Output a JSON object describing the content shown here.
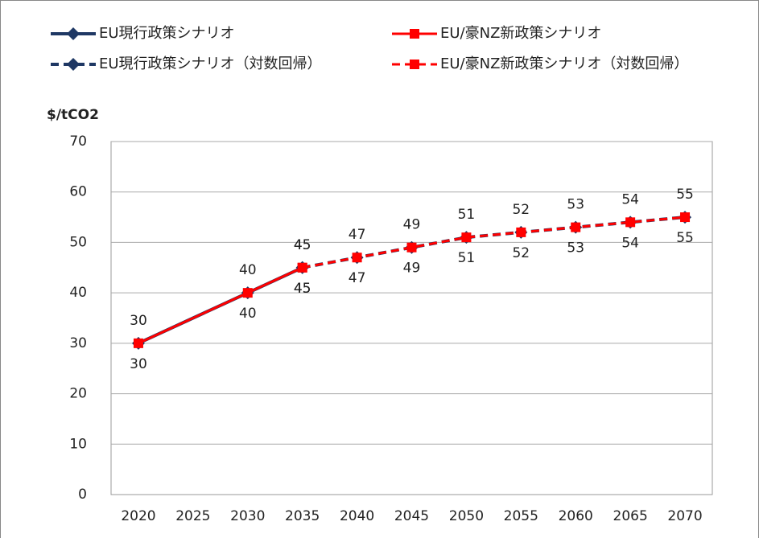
{
  "chart_data": {
    "type": "line",
    "y_label": "$/tCO2",
    "xticks": [
      2020,
      2025,
      2030,
      2035,
      2040,
      2045,
      2050,
      2055,
      2060,
      2065,
      2070
    ],
    "xlim": [
      2017.5,
      2072.5
    ],
    "ylim": [
      0,
      70
    ],
    "yticks": [
      0,
      10,
      20,
      30,
      40,
      50,
      60,
      70
    ],
    "grid": true,
    "series": [
      {
        "name": "EU現行政策シナリオ",
        "color": "#1f3864",
        "marker": "diamond",
        "dash": false,
        "label_side": "above",
        "x": [
          2020,
          2030,
          2035
        ],
        "values": [
          30,
          40,
          45
        ]
      },
      {
        "name": "EU/豪NZ新政策シナリオ",
        "color": "#ff0000",
        "marker": "square",
        "dash": false,
        "label_side": "below",
        "x": [
          2020,
          2030,
          2035
        ],
        "values": [
          30,
          40,
          45
        ]
      },
      {
        "name": "EU現行政策シナリオ（対数回帰）",
        "color": "#1f3864",
        "marker": "diamond",
        "dash": true,
        "label_side": "above",
        "x": [
          2035,
          2040,
          2045,
          2050,
          2055,
          2060,
          2065,
          2070
        ],
        "values": [
          45,
          47,
          49,
          51,
          52,
          53,
          54,
          55
        ]
      },
      {
        "name": "EU/豪NZ新政策シナリオ（対数回帰）",
        "color": "#ff0000",
        "marker": "square",
        "dash": true,
        "label_side": "below",
        "x": [
          2035,
          2040,
          2045,
          2050,
          2055,
          2060,
          2065,
          2070
        ],
        "values": [
          45,
          47,
          49,
          51,
          52,
          53,
          54,
          55
        ]
      }
    ]
  }
}
